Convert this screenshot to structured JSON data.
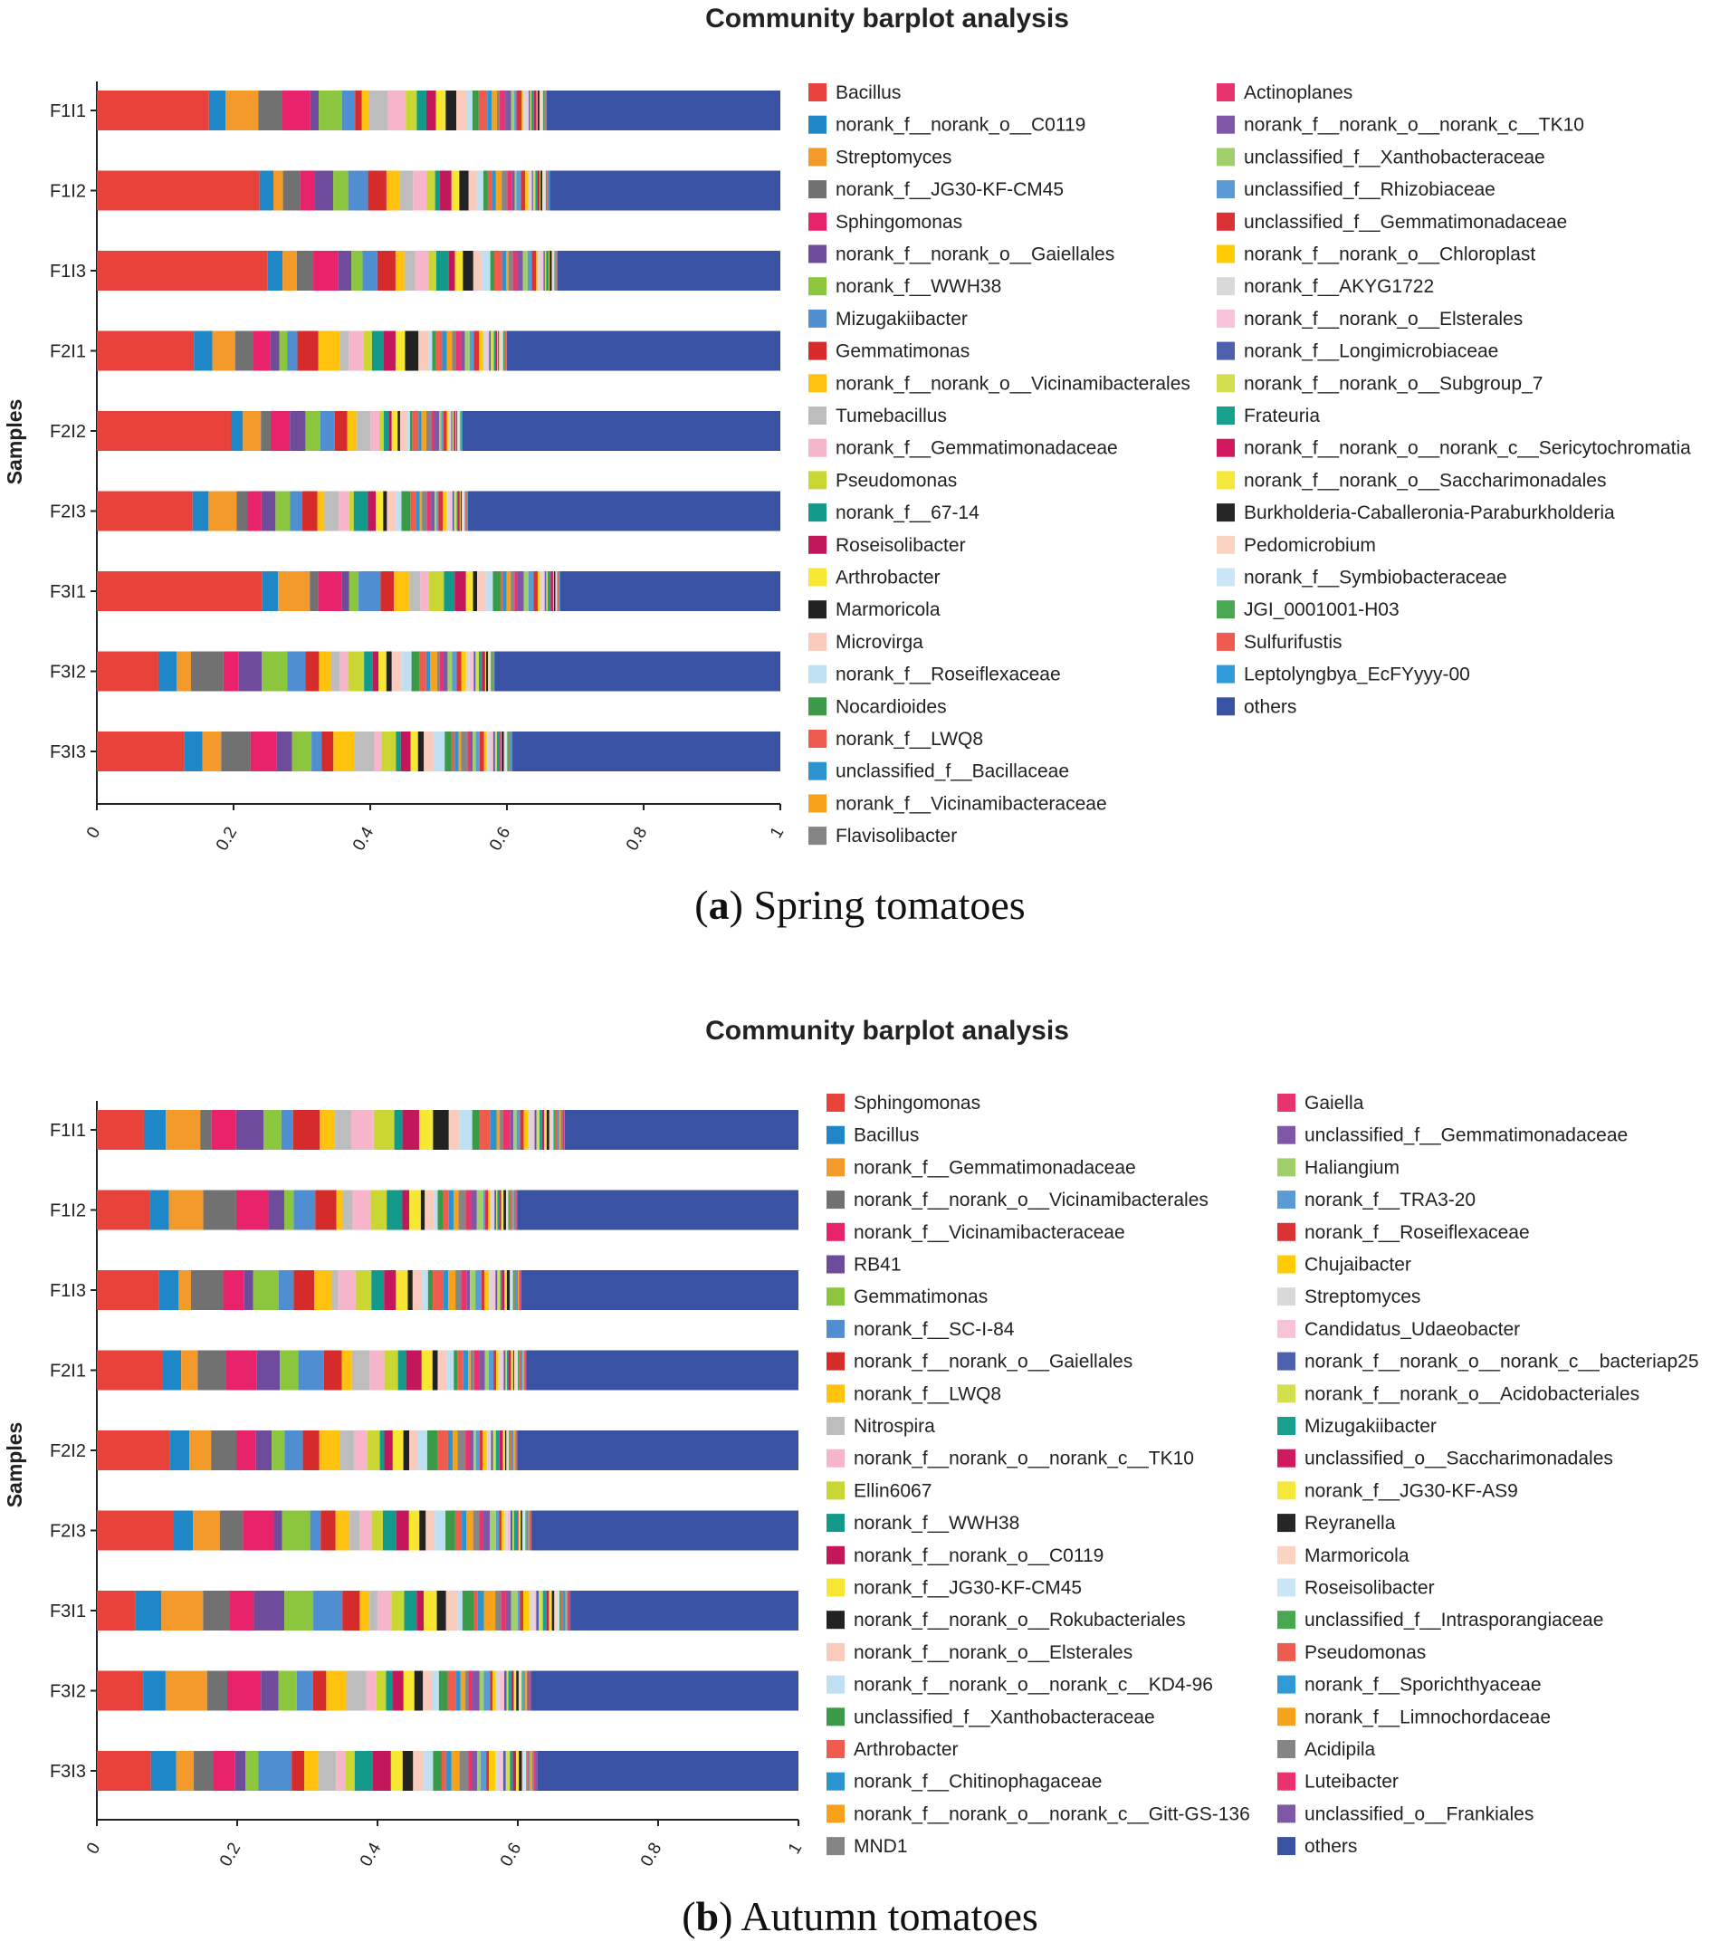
{
  "figure": {
    "panels": [
      {
        "caption_letter": "a",
        "caption_text": "Spring tomatoes"
      },
      {
        "caption_letter": "b",
        "caption_text": "Autumn tomatoes"
      }
    ]
  },
  "chart_data": [
    {
      "type": "bar",
      "orientation": "horizontal",
      "stacked": true,
      "title": "Community barplot analysis",
      "ylabel": "Samples",
      "xlabel": "",
      "xlim": [
        0,
        1
      ],
      "xticks": [
        "0",
        "0.2",
        "0.4",
        "0.6",
        "0.8",
        "1"
      ],
      "categories": [
        "F1I1",
        "F1I2",
        "F1I3",
        "F2I1",
        "F2I2",
        "F2I3",
        "F3I1",
        "F3I2",
        "F3I3"
      ],
      "legend_position": "right",
      "legend": [
        {
          "name": "Bacillus",
          "color": "#e8423a"
        },
        {
          "name": "norank_f__norank_o__C0119",
          "color": "#1f86c8"
        },
        {
          "name": "Streptomyces",
          "color": "#f49a2a"
        },
        {
          "name": "norank_f__JG30-KF-CM45",
          "color": "#717171"
        },
        {
          "name": "Sphingomonas",
          "color": "#e8226b"
        },
        {
          "name": "norank_f__norank_o__Gaiellales",
          "color": "#6f4b9c"
        },
        {
          "name": "norank_f__WWH38",
          "color": "#8cc63f"
        },
        {
          "name": "Mizugakiibacter",
          "color": "#4f8fd1"
        },
        {
          "name": "Gemmatimonas",
          "color": "#d62b2b"
        },
        {
          "name": "norank_f__norank_o__Vicinamibacterales",
          "color": "#ffc20e"
        },
        {
          "name": "Tumebacillus",
          "color": "#bdbdbd"
        },
        {
          "name": "norank_f__Gemmatimonadaceae",
          "color": "#f7b5cc"
        },
        {
          "name": "Pseudomonas",
          "color": "#c9d634"
        },
        {
          "name": "norank_f__67-14",
          "color": "#12998a"
        },
        {
          "name": "Roseisolibacter",
          "color": "#c2185b"
        },
        {
          "name": "Arthrobacter",
          "color": "#f7e733"
        },
        {
          "name": "Marmoricola",
          "color": "#222222"
        },
        {
          "name": "Microvirga",
          "color": "#f9cbbd"
        },
        {
          "name": "norank_f__Roseiflexaceae",
          "color": "#bfdff2"
        },
        {
          "name": "Nocardioides",
          "color": "#3a9a48"
        },
        {
          "name": "norank_f__LWQ8",
          "color": "#ef5b4c"
        },
        {
          "name": "unclassified_f__Bacillaceae",
          "color": "#2a93d0"
        },
        {
          "name": "norank_f__Vicinamibacteraceae",
          "color": "#f7a21b"
        },
        {
          "name": "Flavisolibacter",
          "color": "#858585"
        },
        {
          "name": "Actinoplanes",
          "color": "#e8336d"
        },
        {
          "name": "norank_f__norank_o__norank_c__TK10",
          "color": "#7e57a6"
        },
        {
          "name": "unclassified_f__Xanthobacteraceae",
          "color": "#9fd06a"
        },
        {
          "name": "unclassified_f__Rhizobiaceae",
          "color": "#5b9bd5"
        },
        {
          "name": "unclassified_f__Gemmatimonadaceae",
          "color": "#db3236"
        },
        {
          "name": "norank_f__norank_o__Chloroplast",
          "color": "#ffcb05"
        },
        {
          "name": "norank_f__AKYG1722",
          "color": "#d9d9d9"
        },
        {
          "name": "norank_f__norank_o__Elsterales",
          "color": "#f8c3d8"
        },
        {
          "name": "norank_f__Longimicrobiaceae",
          "color": "#4e5fae"
        },
        {
          "name": "norank_f__norank_o__Subgroup_7",
          "color": "#d4df4f"
        },
        {
          "name": "Frateuria",
          "color": "#17a08e"
        },
        {
          "name": "norank_f__norank_o__norank_c__Sericytochromatia",
          "color": "#d1195f"
        },
        {
          "name": "norank_f__norank_o__Saccharimonadales",
          "color": "#f6e83b"
        },
        {
          "name": "Burkholderia-Caballeronia-Paraburkholderia",
          "color": "#262626"
        },
        {
          "name": "Pedomicrobium",
          "color": "#fbd3c3"
        },
        {
          "name": "norank_f__Symbiobacteraceae",
          "color": "#c9e6f7"
        },
        {
          "name": "JGI_0001001-H03",
          "color": "#48a852"
        },
        {
          "name": "Sulfurifustis",
          "color": "#ee5b4f"
        },
        {
          "name": "Leptolyngbya_EcFYyyy-00",
          "color": "#2f9ad7"
        },
        {
          "name": "others",
          "color": "#3a52a4"
        }
      ],
      "first_bacterial_fraction": [
        0.164,
        0.238,
        0.25,
        0.142,
        0.196,
        0.14,
        0.242,
        0.09,
        0.128
      ],
      "others_start": [
        0.658,
        0.663,
        0.674,
        0.6,
        0.535,
        0.543,
        0.678,
        0.582,
        0.608
      ],
      "stack_sequence": [
        [
          1,
          2,
          3,
          4,
          5,
          6,
          7,
          8,
          9,
          10,
          11,
          12,
          13,
          14,
          15,
          16,
          17,
          18,
          19,
          20,
          21,
          22,
          23,
          24,
          25,
          26,
          27,
          28,
          29,
          30,
          31,
          32,
          33,
          34,
          35,
          36,
          37,
          38,
          39,
          40,
          41,
          42
        ],
        [
          1,
          2,
          3,
          4,
          5,
          6,
          7,
          8,
          9,
          10,
          11,
          12,
          13,
          14,
          15,
          16,
          17,
          18,
          19,
          20,
          21,
          22,
          23,
          24,
          25,
          26,
          27,
          28,
          29,
          30,
          31,
          32,
          33,
          34,
          35,
          36,
          37,
          38,
          39,
          40,
          41,
          42
        ],
        [
          1,
          2,
          3,
          4,
          5,
          6,
          7,
          8,
          9,
          10,
          11,
          12,
          13,
          14,
          15,
          16,
          17,
          18,
          19,
          20,
          21,
          22,
          23,
          24,
          25,
          26,
          27,
          28,
          29,
          30,
          31,
          32,
          33,
          34,
          35,
          36,
          37,
          38,
          39,
          40,
          41,
          42
        ],
        [
          1,
          2,
          3,
          4,
          5,
          6,
          7,
          8,
          9,
          10,
          11,
          12,
          13,
          14,
          15,
          16,
          17,
          18,
          19,
          20,
          21,
          22,
          23,
          24,
          25,
          26,
          27,
          28,
          29,
          30,
          31,
          32,
          33,
          34,
          35,
          36,
          37,
          38,
          39,
          40,
          41,
          42
        ],
        [
          1,
          2,
          3,
          4,
          5,
          6,
          7,
          8,
          9,
          10,
          11,
          12,
          13,
          14,
          15,
          16,
          17,
          18,
          19,
          20,
          21,
          22,
          23,
          24,
          25,
          26,
          27,
          28,
          29,
          30,
          31,
          32,
          33,
          34,
          35,
          36,
          37,
          38,
          39,
          40,
          41,
          42
        ],
        [
          1,
          2,
          3,
          4,
          5,
          6,
          7,
          8,
          9,
          10,
          11,
          12,
          13,
          14,
          15,
          16,
          17,
          18,
          19,
          20,
          21,
          22,
          23,
          24,
          25,
          26,
          27,
          28,
          29,
          30,
          31,
          32,
          33,
          34,
          35,
          36,
          37,
          38,
          39,
          40,
          41,
          42
        ],
        [
          1,
          2,
          3,
          4,
          5,
          6,
          7,
          8,
          9,
          10,
          11,
          12,
          13,
          14,
          15,
          16,
          17,
          18,
          19,
          20,
          21,
          22,
          23,
          24,
          25,
          26,
          27,
          28,
          29,
          30,
          31,
          32,
          33,
          34,
          35,
          36,
          37,
          38,
          39,
          40,
          41,
          42
        ],
        [
          1,
          2,
          3,
          4,
          5,
          6,
          7,
          8,
          9,
          10,
          11,
          12,
          13,
          14,
          15,
          16,
          17,
          18,
          19,
          20,
          21,
          22,
          23,
          24,
          25,
          26,
          27,
          28,
          29,
          30,
          31,
          32,
          33,
          34,
          35,
          36,
          37,
          38,
          39,
          40,
          41,
          42
        ],
        [
          1,
          2,
          3,
          4,
          5,
          6,
          7,
          8,
          9,
          10,
          11,
          12,
          13,
          14,
          15,
          16,
          17,
          18,
          19,
          20,
          21,
          22,
          23,
          24,
          25,
          26,
          27,
          28,
          29,
          30,
          31,
          32,
          33,
          34,
          35,
          36,
          37,
          38,
          39,
          40,
          41,
          42
        ]
      ]
    },
    {
      "type": "bar",
      "orientation": "horizontal",
      "stacked": true,
      "title": "Community barplot analysis",
      "ylabel": "Samples",
      "xlabel": "",
      "xlim": [
        0,
        1
      ],
      "xticks": [
        "0",
        "0.2",
        "0.4",
        "0.6",
        "0.8",
        "1"
      ],
      "categories": [
        "F1I1",
        "F1I2",
        "F1I3",
        "F2I1",
        "F2I2",
        "F2I3",
        "F3I1",
        "F3I2",
        "F3I3"
      ],
      "legend_position": "right",
      "legend": [
        {
          "name": "Sphingomonas",
          "color": "#e8423a"
        },
        {
          "name": "Bacillus",
          "color": "#1f86c8"
        },
        {
          "name": "norank_f__Gemmatimonadaceae",
          "color": "#f49a2a"
        },
        {
          "name": "norank_f__norank_o__Vicinamibacterales",
          "color": "#717171"
        },
        {
          "name": "norank_f__Vicinamibacteraceae",
          "color": "#e8226b"
        },
        {
          "name": "RB41",
          "color": "#6f4b9c"
        },
        {
          "name": "Gemmatimonas",
          "color": "#8cc63f"
        },
        {
          "name": "norank_f__SC-I-84",
          "color": "#4f8fd1"
        },
        {
          "name": "norank_f__norank_o__Gaiellales",
          "color": "#d62b2b"
        },
        {
          "name": "norank_f__LWQ8",
          "color": "#ffc20e"
        },
        {
          "name": "Nitrospira",
          "color": "#bdbdbd"
        },
        {
          "name": "norank_f__norank_o__norank_c__TK10",
          "color": "#f7b5cc"
        },
        {
          "name": "Ellin6067",
          "color": "#c9d634"
        },
        {
          "name": "norank_f__WWH38",
          "color": "#12998a"
        },
        {
          "name": "norank_f__norank_o__C0119",
          "color": "#c2185b"
        },
        {
          "name": "norank_f__JG30-KF-CM45",
          "color": "#f7e733"
        },
        {
          "name": "norank_f__norank_o__Rokubacteriales",
          "color": "#222222"
        },
        {
          "name": "norank_f__norank_o__Elsterales",
          "color": "#f9cbbd"
        },
        {
          "name": "norank_f__norank_o__norank_c__KD4-96",
          "color": "#bfdff2"
        },
        {
          "name": "unclassified_f__Xanthobacteraceae",
          "color": "#3a9a48"
        },
        {
          "name": "Arthrobacter",
          "color": "#ef5b4c"
        },
        {
          "name": "norank_f__Chitinophagaceae",
          "color": "#2a93d0"
        },
        {
          "name": "norank_f__norank_o__norank_c__Gitt-GS-136",
          "color": "#f7a21b"
        },
        {
          "name": "MND1",
          "color": "#858585"
        },
        {
          "name": "Gaiella",
          "color": "#e8336d"
        },
        {
          "name": "unclassified_f__Gemmatimonadaceae",
          "color": "#7e57a6"
        },
        {
          "name": "Haliangium",
          "color": "#9fd06a"
        },
        {
          "name": "norank_f__TRA3-20",
          "color": "#5b9bd5"
        },
        {
          "name": "norank_f__Roseiflexaceae",
          "color": "#db3236"
        },
        {
          "name": "Chujaibacter",
          "color": "#ffcb05"
        },
        {
          "name": "Streptomyces",
          "color": "#d9d9d9"
        },
        {
          "name": "Candidatus_Udaeobacter",
          "color": "#f8c3d8"
        },
        {
          "name": "norank_f__norank_o__norank_c__bacteriap25",
          "color": "#4e5fae"
        },
        {
          "name": "norank_f__norank_o__Acidobacteriales",
          "color": "#d4df4f"
        },
        {
          "name": "Mizugakiibacter",
          "color": "#17a08e"
        },
        {
          "name": "unclassified_o__Saccharimonadales",
          "color": "#d1195f"
        },
        {
          "name": "norank_f__JG30-KF-AS9",
          "color": "#f6e83b"
        },
        {
          "name": "Reyranella",
          "color": "#262626"
        },
        {
          "name": "Marmoricola",
          "color": "#fbd3c3"
        },
        {
          "name": "Roseisolibacter",
          "color": "#c9e6f7"
        },
        {
          "name": "unclassified_f__Intrasporangiaceae",
          "color": "#48a852"
        },
        {
          "name": "Pseudomonas",
          "color": "#ee5b4f"
        },
        {
          "name": "norank_f__Sporichthyaceae",
          "color": "#2f9ad7"
        },
        {
          "name": "norank_f__Limnochordaceae",
          "color": "#f7a21b"
        },
        {
          "name": "Acidipila",
          "color": "#858585"
        },
        {
          "name": "Luteibacter",
          "color": "#e8336d"
        },
        {
          "name": "unclassified_o__Frankiales",
          "color": "#7e57a6"
        },
        {
          "name": "others",
          "color": "#3a52a4"
        }
      ],
      "first_bacterial_fraction": [
        0.067,
        0.076,
        0.088,
        0.093,
        0.104,
        0.109,
        0.055,
        0.066,
        0.077
      ],
      "others_start": [
        0.667,
        0.599,
        0.605,
        0.612,
        0.6,
        0.62,
        0.675,
        0.619,
        0.628
      ]
    }
  ]
}
